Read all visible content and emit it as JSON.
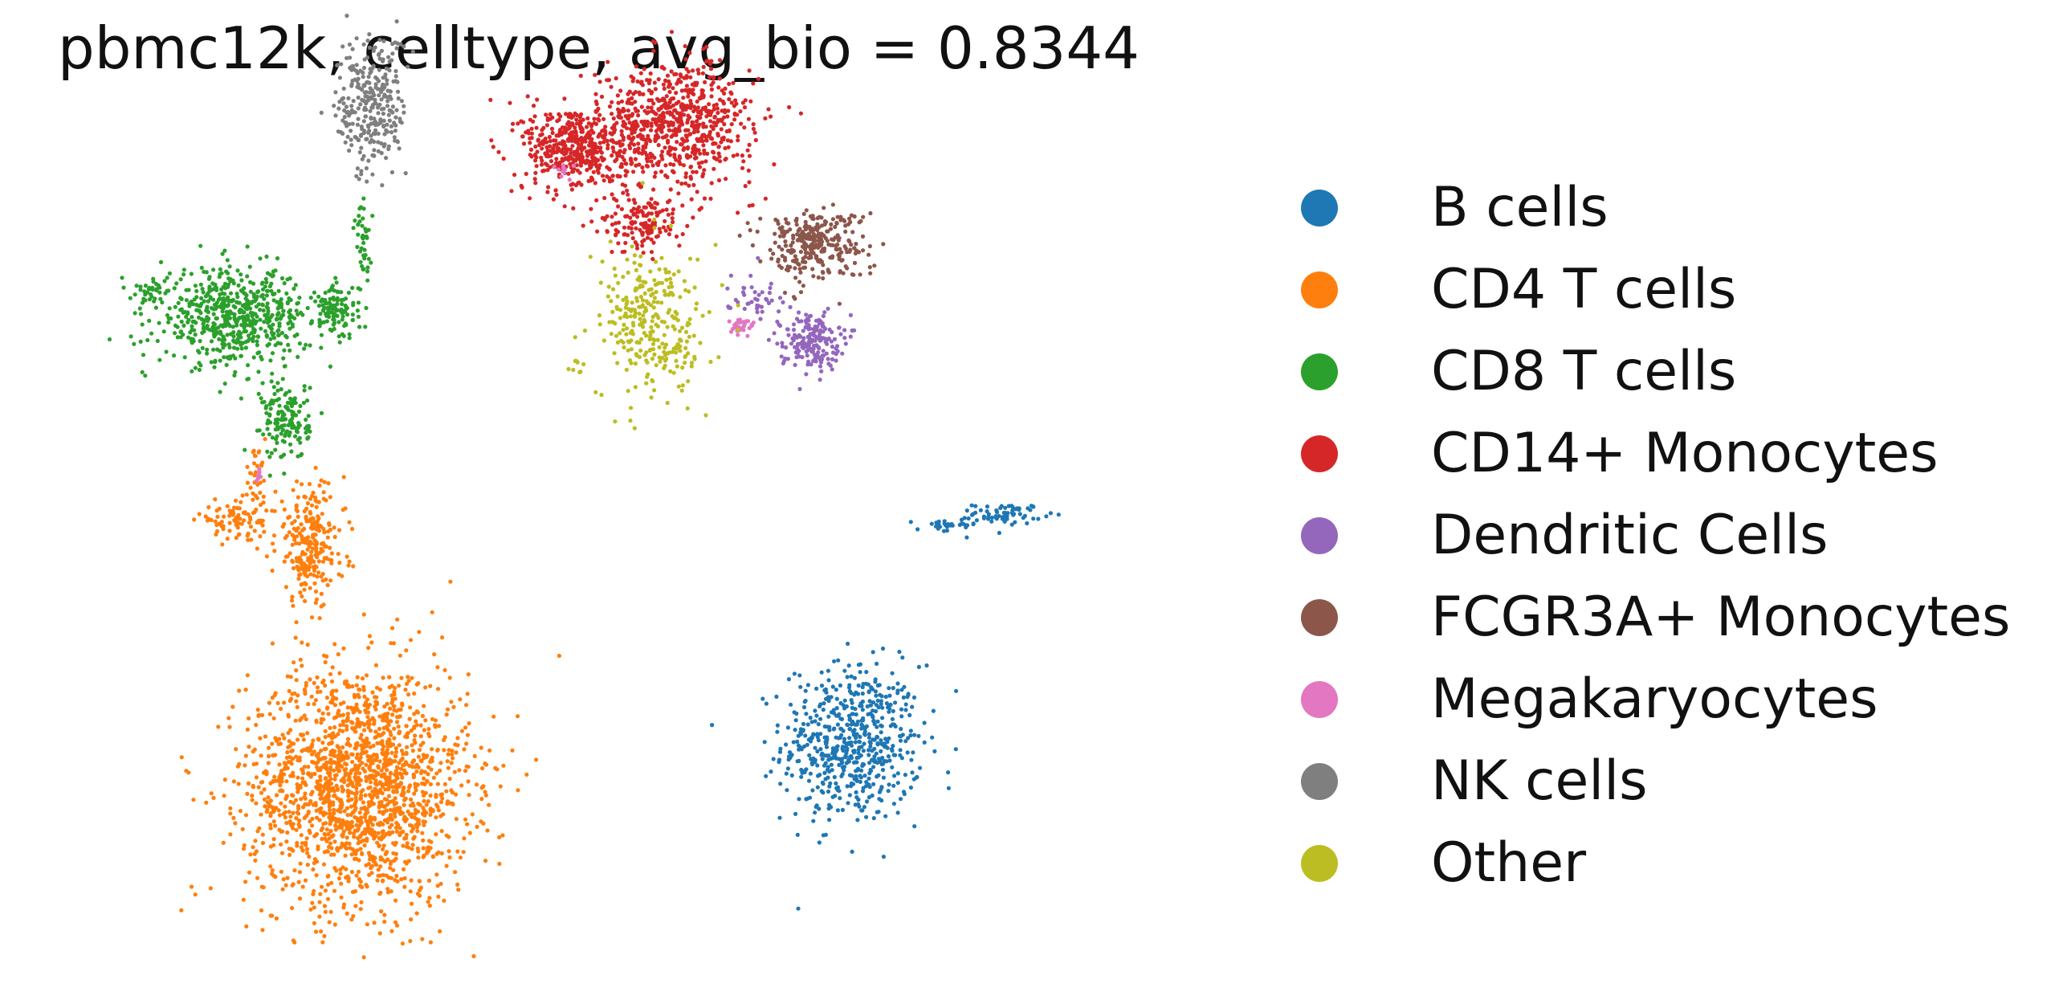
{
  "chart_data": {
    "type": "scatter",
    "title": "pbmc12k, celltype, avg_bio = 0.8344",
    "xlabel": "",
    "ylabel": "",
    "axes_visible": false,
    "grid": false,
    "legend_position": "right",
    "xlim": [
      0,
      100
    ],
    "ylim": [
      0,
      100
    ],
    "series": [
      {
        "name": "B cells",
        "color": "#1f77b4",
        "clusters": [
          {
            "cx": 70.5,
            "cy": 25,
            "sx": 4.2,
            "sy": 6.3,
            "n": 600
          },
          {
            "cx": 84.7,
            "cy": 52.6,
            "sx": 2.1,
            "sy": 0.8,
            "n": 70
          },
          {
            "cx": 79.1,
            "cy": 51.1,
            "sx": 1.8,
            "sy": 0.6,
            "n": 30
          }
        ]
      },
      {
        "name": "CD4 T cells",
        "color": "#ff7f0e",
        "clusters": [
          {
            "cx": 25.7,
            "cy": 20,
            "sx": 6.7,
            "sy": 9.5,
            "n": 1800
          },
          {
            "cx": 21.3,
            "cy": 48.9,
            "sx": 2.1,
            "sy": 4.8,
            "n": 250
          },
          {
            "cx": 14.8,
            "cy": 51.9,
            "sx": 2.5,
            "sy": 1.5,
            "n": 90
          },
          {
            "cx": 16.2,
            "cy": 57.1,
            "sx": 0.7,
            "sy": 2.1,
            "n": 30
          }
        ]
      },
      {
        "name": "CD8 T cells",
        "color": "#2ca02c",
        "clusters": [
          {
            "cx": 14.3,
            "cy": 76.2,
            "sx": 4.5,
            "sy": 3.8,
            "n": 600
          },
          {
            "cx": 23.6,
            "cy": 76.9,
            "sx": 1.4,
            "sy": 2.2,
            "n": 120
          },
          {
            "cx": 19.1,
            "cy": 63.8,
            "sx": 1.4,
            "sy": 3.2,
            "n": 150
          },
          {
            "cx": 26.1,
            "cy": 84.7,
            "sx": 0.6,
            "sy": 3.5,
            "n": 40
          },
          {
            "cx": 7.1,
            "cy": 79.4,
            "sx": 1.1,
            "sy": 1.0,
            "n": 30
          }
        ]
      },
      {
        "name": "CD14+ Monocytes",
        "color": "#d62728",
        "clusters": [
          {
            "cx": 54.6,
            "cy": 99.4,
            "sx": 4.6,
            "sy": 4.8,
            "n": 700
          },
          {
            "cx": 45.4,
            "cy": 96.6,
            "sx": 3.2,
            "sy": 3.5,
            "n": 450
          },
          {
            "cx": 51.4,
            "cy": 87.6,
            "sx": 2.5,
            "sy": 2.5,
            "n": 150
          }
        ]
      },
      {
        "name": "Dendritic Cells",
        "color": "#9467bd",
        "clusters": [
          {
            "cx": 66.7,
            "cy": 73.4,
            "sx": 1.8,
            "sy": 2.2,
            "n": 180
          },
          {
            "cx": 61.7,
            "cy": 79.1,
            "sx": 1.8,
            "sy": 1.9,
            "n": 40
          }
        ]
      },
      {
        "name": "FCGR3A+ Monocytes",
        "color": "#8c564b",
        "clusters": [
          {
            "cx": 67,
            "cy": 85,
            "sx": 3.2,
            "sy": 2.8,
            "n": 300
          }
        ]
      },
      {
        "name": "Megakaryocytes",
        "color": "#e377c2",
        "clusters": [
          {
            "cx": 60.3,
            "cy": 75.1,
            "sx": 0.8,
            "sy": 0.7,
            "n": 30
          },
          {
            "cx": 44.3,
            "cy": 93.9,
            "sx": 0.7,
            "sy": 0.7,
            "n": 10
          },
          {
            "cx": 16.3,
            "cy": 57.2,
            "sx": 0.5,
            "sy": 0.5,
            "n": 8
          }
        ]
      },
      {
        "name": "NK cells",
        "color": "#7f7f7f",
        "clusters": [
          {
            "cx": 26.9,
            "cy": 101.5,
            "sx": 2.1,
            "sy": 5.7,
            "n": 300
          }
        ]
      },
      {
        "name": "Other",
        "color": "#bcbd22",
        "clusters": [
          {
            "cx": 52.5,
            "cy": 75.3,
            "sx": 3.2,
            "sy": 6.0,
            "n": 300
          },
          {
            "cx": 45.4,
            "cy": 70.4,
            "sx": 0.6,
            "sy": 0.6,
            "n": 8
          }
        ]
      }
    ]
  }
}
